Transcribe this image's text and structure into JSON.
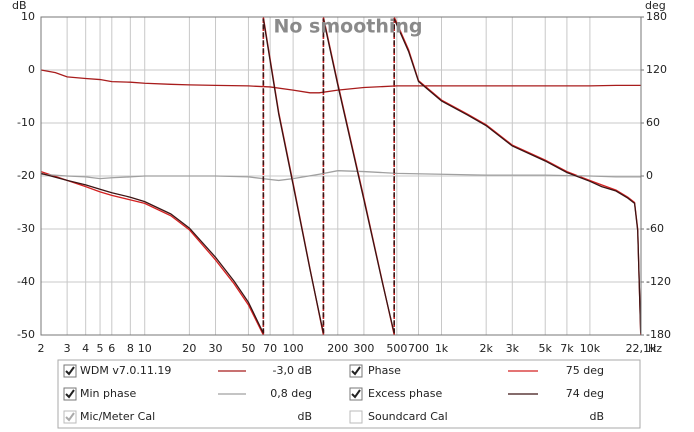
{
  "chart_data": {
    "type": "line",
    "title": "No smoothing",
    "y_label": "dB",
    "y2_label": "deg",
    "x_label": "Hz",
    "xscale": "log",
    "xlim": [
      2,
      22100
    ],
    "xticks": [
      2,
      3,
      4,
      5,
      6,
      8,
      10,
      20,
      30,
      50,
      70,
      100,
      200,
      300,
      500,
      700,
      {
        "value": 1000,
        "label": "1k"
      },
      {
        "value": 2000,
        "label": "2k"
      },
      {
        "value": 3000,
        "label": "3k"
      },
      {
        "value": 5000,
        "label": "5k"
      },
      {
        "value": 7000,
        "label": "7k"
      },
      {
        "value": 10000,
        "label": "10k"
      },
      {
        "value": 22100,
        "label": "22,1k"
      }
    ],
    "ylim": [
      -50,
      10
    ],
    "yticks": [
      -50,
      -40,
      -30,
      -20,
      -10,
      0,
      10
    ],
    "y2lim": [
      -180,
      180
    ],
    "y2ticks": [
      -180,
      -120,
      -60,
      0,
      60,
      120,
      180
    ],
    "grid": true,
    "series": [
      {
        "name": "WDM v7.0.11.19",
        "color": "#a81c1c",
        "axis": "y",
        "x": [
          2,
          2.5,
          3,
          4,
          5,
          6,
          8,
          10,
          15,
          20,
          30,
          50,
          70,
          100,
          130,
          150,
          200,
          300,
          500,
          1000,
          2000,
          5000,
          10000,
          15000,
          22000
        ],
        "values": [
          0,
          -0.5,
          -1.3,
          -1.6,
          -1.8,
          -2.2,
          -2.3,
          -2.5,
          -2.7,
          -2.8,
          -2.9,
          -3,
          -3.2,
          -3.8,
          -4.3,
          -4.3,
          -3.8,
          -3.3,
          -3,
          -3,
          -3,
          -3,
          -3,
          -2.9,
          -2.9
        ]
      },
      {
        "name": "Phase",
        "color": "#d42020",
        "axis": "y2",
        "gap_style": "dashed",
        "x": [
          2,
          3,
          4,
          5,
          6,
          8,
          10,
          15,
          20,
          30,
          40,
          50,
          63,
          63,
          63,
          80,
          100,
          130,
          160,
          160,
          160,
          200,
          300,
          400,
          480,
          480,
          480,
          600,
          700,
          1000,
          1500,
          2000,
          3000,
          5000,
          7000,
          10000,
          12000,
          15000,
          18000,
          20000,
          21000,
          22000
        ],
        "values": [
          5,
          -5,
          -12,
          -18,
          -22,
          -27,
          -31,
          -45,
          -61,
          -95,
          -122,
          -146,
          -180,
          null,
          180,
          72,
          -8,
          -105,
          -180,
          null,
          180,
          105,
          -25,
          -120,
          -180,
          null,
          180,
          143,
          108,
          86,
          70,
          58,
          35,
          18,
          5,
          -5,
          -10,
          -16,
          -24,
          -30,
          -60,
          -180
        ]
      },
      {
        "name": "Min phase",
        "color": "#a0a0a0",
        "axis": "y2",
        "x": [
          2,
          3,
          4,
          5,
          6,
          8,
          10,
          20,
          30,
          50,
          70,
          80,
          100,
          150,
          200,
          300,
          500,
          1000,
          2000,
          5000,
          10000,
          15000,
          22000
        ],
        "values": [
          2,
          0,
          -1,
          -3,
          -2,
          -1,
          0,
          0,
          0,
          -1,
          -4,
          -5,
          -3,
          2,
          6,
          5,
          3,
          2,
          1,
          1,
          0,
          -1,
          -1
        ]
      },
      {
        "name": "Excess phase",
        "color": "#3c1414",
        "axis": "y2",
        "gap_style": "dashed",
        "x": [
          2,
          3,
          4,
          5,
          6,
          8,
          10,
          15,
          20,
          30,
          40,
          50,
          63,
          63,
          63,
          80,
          100,
          130,
          160,
          160,
          160,
          200,
          300,
          400,
          480,
          480,
          480,
          600,
          700,
          1000,
          1500,
          2000,
          3000,
          5000,
          7000,
          10000,
          12000,
          15000,
          18000,
          20000,
          21000,
          22000
        ],
        "values": [
          3,
          -5,
          -10,
          -15,
          -19,
          -24,
          -29,
          -43,
          -59,
          -92,
          -119,
          -143,
          -178,
          null,
          178,
          70,
          -10,
          -106,
          -178,
          null,
          178,
          103,
          -27,
          -121,
          -178,
          null,
          178,
          141,
          107,
          85,
          69,
          57,
          34,
          17,
          4,
          -6,
          -12,
          -17,
          -25,
          -31,
          -62,
          -178
        ]
      }
    ]
  },
  "panel": {
    "readouts": [
      "-3,0 dB",
      "75 deg",
      "0,8 deg",
      "74 deg"
    ],
    "calibrations": [
      {
        "name": "Mic/Meter Cal",
        "unit": "dB",
        "checked": true
      },
      {
        "name": "Soundcard Cal",
        "unit": "dB",
        "checked": false
      }
    ]
  }
}
